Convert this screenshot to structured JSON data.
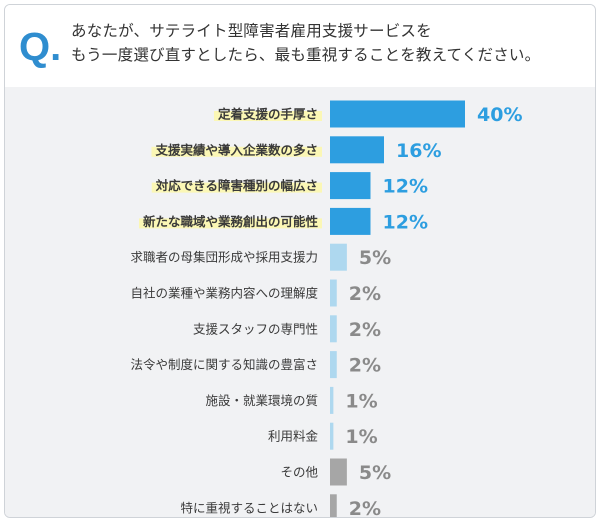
{
  "header": {
    "badge": "Q.",
    "question_lines": [
      "あなたが、サテライト型障害者雇用支援サービスを",
      "もう一度選び直すとしたら、最も重視することを教えてください。"
    ]
  },
  "colors": {
    "accent": "#2f8dcf",
    "bar_primary": "#2d9ee0",
    "bar_secondary": "#aed8ef",
    "bar_other": "#a6a6a6",
    "highlight": "#fbf7b5",
    "frame_bg": "#f1f2f4"
  },
  "chart_data": {
    "type": "bar",
    "orientation": "horizontal",
    "unit": "%",
    "categories": [
      "定着支援の手厚さ",
      "支援実績や導入企業数の多さ",
      "対応できる障害種別の幅広さ",
      "新たな職域や業務創出の可能性",
      "求職者の母集団形成や採用支援力",
      "自社の業種や業務内容への理解度",
      "支援スタッフの専門性",
      "法令や制度に関する知識の豊富さ",
      "施設・就業環境の質",
      "利用料金",
      "その他",
      "特に重視することはない"
    ],
    "values": [
      40,
      16,
      12,
      12,
      5,
      2,
      2,
      2,
      1,
      1,
      5,
      2
    ],
    "value_labels": [
      "40%",
      "16%",
      "12%",
      "12%",
      "5%",
      "2%",
      "2%",
      "2%",
      "1%",
      "1%",
      "5%",
      "2%"
    ],
    "bar_style": [
      "primary",
      "primary",
      "primary",
      "primary",
      "secondary",
      "secondary",
      "secondary",
      "secondary",
      "secondary",
      "secondary",
      "other",
      "other"
    ],
    "highlighted": [
      true,
      true,
      true,
      true,
      false,
      false,
      false,
      false,
      false,
      false,
      false,
      false
    ],
    "xlim": [
      0,
      40
    ],
    "grid": false,
    "legend": "none"
  }
}
